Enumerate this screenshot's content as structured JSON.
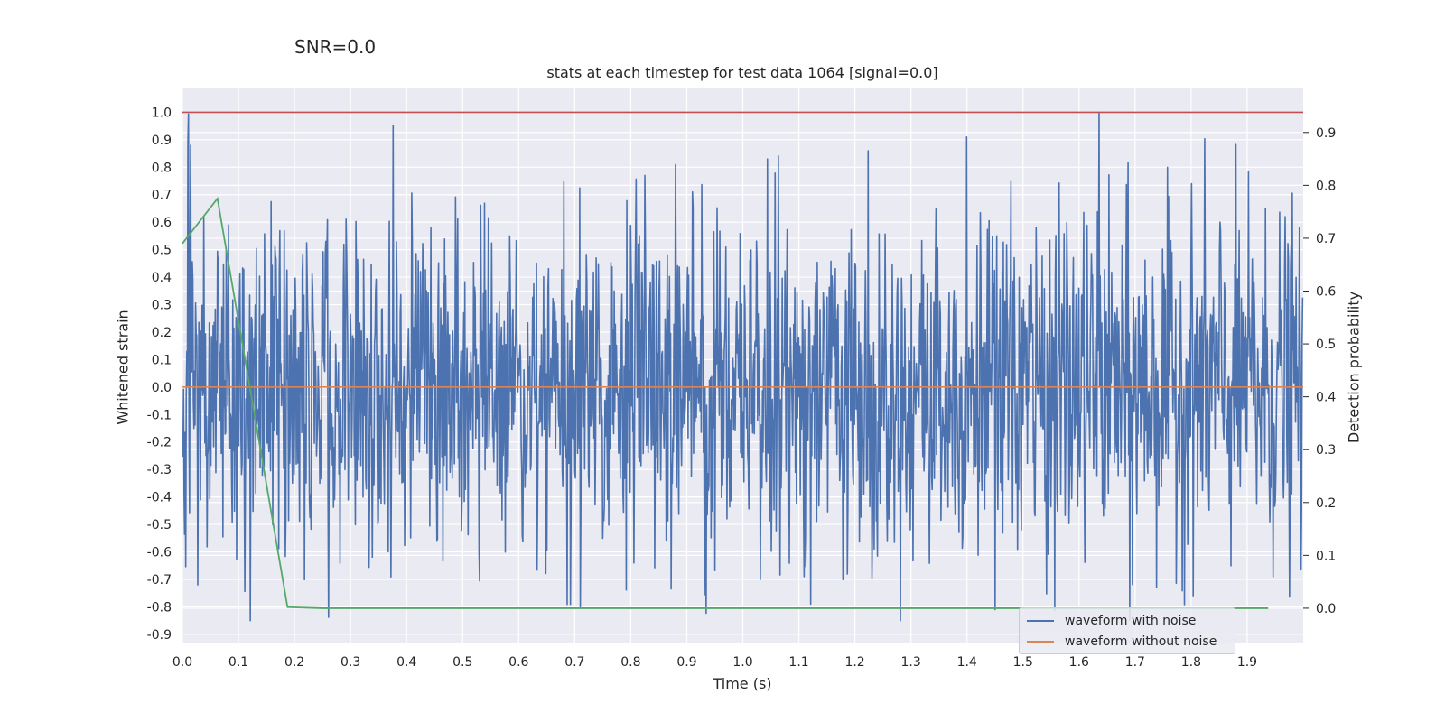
{
  "chart_data": {
    "type": "line",
    "suptitle": "SNR=0.0",
    "title": "stats at each timestep for test data 1064 [signal=0.0]",
    "xlabel": "Time (s)",
    "ylabel": "Whitened strain",
    "ylabel_right": "Detection probability",
    "xlim": [
      0.0,
      2.0
    ],
    "ylim_left": [
      -0.93,
      1.09
    ],
    "ylim_right": [
      -0.065,
      0.985
    ],
    "x_ticks": [
      "0.0",
      "0.1",
      "0.2",
      "0.3",
      "0.4",
      "0.5",
      "0.6",
      "0.7",
      "0.8",
      "0.9",
      "1.0",
      "1.1",
      "1.2",
      "1.3",
      "1.4",
      "1.5",
      "1.6",
      "1.7",
      "1.8",
      "1.9"
    ],
    "y_ticks_left": [
      "1.0",
      "0.9",
      "0.8",
      "0.7",
      "0.6",
      "0.5",
      "0.4",
      "0.3",
      "0.2",
      "0.1",
      "0.0",
      "-0.1",
      "-0.2",
      "-0.3",
      "-0.4",
      "-0.5",
      "-0.6",
      "-0.7",
      "-0.8",
      "-0.9"
    ],
    "y_ticks_right": [
      "0.9",
      "0.8",
      "0.7",
      "0.6",
      "0.5",
      "0.4",
      "0.3",
      "0.2",
      "0.1",
      "0.0"
    ],
    "grid": true,
    "legend_position": "lower-right",
    "series": [
      {
        "name": "waveform with noise",
        "axis": "left",
        "color": "#4c72b0",
        "description": "Whitened noise sampled at ~2048 Hz over 0–2 s, fluctuating between about -0.85 and 1.0; notable peaks at t≈0.007 (0.88), 1.40 (0.91), 1.635 (1.0); notable troughs at t≈0.71 (-0.80), 1.45 (-0.81), 1.69 (-0.85).",
        "sample_count": 2048,
        "amplitude_range": [
          -0.85,
          1.0
        ]
      },
      {
        "name": "waveform without noise",
        "axis": "left",
        "color": "#dd8452",
        "x": [
          0.0,
          2.0
        ],
        "y": [
          0.0,
          0.0
        ]
      },
      {
        "name": "detection probability",
        "axis": "right",
        "color": "#55a868",
        "x": [
          0.0,
          0.0625,
          0.1875,
          0.25,
          1.9375
        ],
        "y": [
          0.69,
          0.775,
          0.002,
          0.0,
          0.0
        ]
      }
    ],
    "threshold_line": {
      "axis": "left",
      "y": 1.0,
      "color": "#c44e52"
    }
  },
  "legend": {
    "items": [
      {
        "label": "waveform with noise",
        "color": "#4c72b0"
      },
      {
        "label": "waveform without noise",
        "color": "#dd8452"
      }
    ]
  }
}
